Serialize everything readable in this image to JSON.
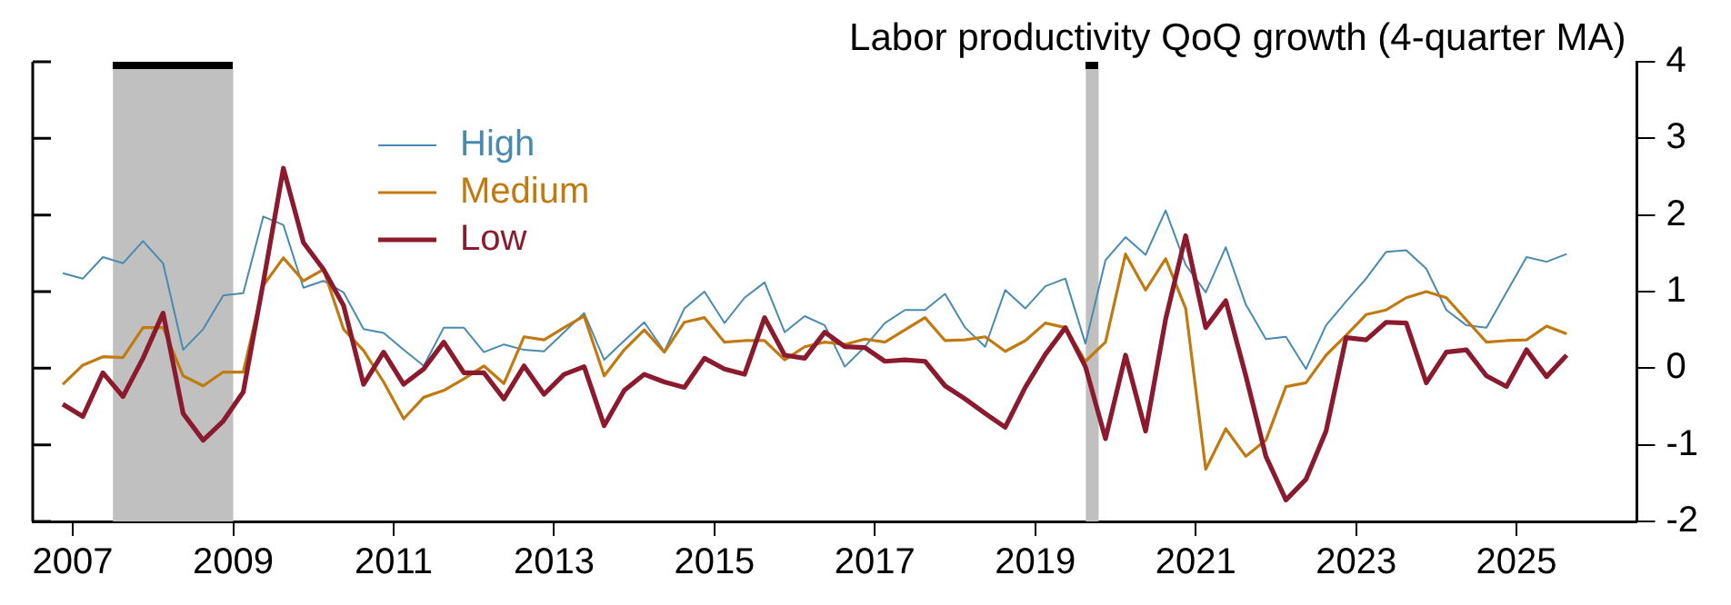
{
  "chart_data": {
    "type": "line",
    "title": "Labor productivity QoQ growth (4-quarter MA)",
    "x": [
      2007.375,
      2007.625,
      2007.875,
      2008.125,
      2008.375,
      2008.625,
      2008.875,
      2009.125,
      2009.375,
      2009.625,
      2009.875,
      2010.125,
      2010.375,
      2010.625,
      2010.875,
      2011.125,
      2011.375,
      2011.625,
      2011.875,
      2012.125,
      2012.375,
      2012.625,
      2012.875,
      2013.125,
      2013.375,
      2013.625,
      2013.875,
      2014.125,
      2014.375,
      2014.625,
      2014.875,
      2015.125,
      2015.375,
      2015.625,
      2015.875,
      2016.125,
      2016.375,
      2016.625,
      2016.875,
      2017.125,
      2017.375,
      2017.625,
      2017.875,
      2018.125,
      2018.375,
      2018.625,
      2018.875,
      2019.125,
      2019.375,
      2019.625,
      2019.875,
      2020.125,
      2020.375,
      2020.625,
      2020.875,
      2021.125,
      2021.375,
      2021.625,
      2021.875,
      2022.125,
      2022.375,
      2022.625,
      2022.875,
      2023.125,
      2023.375,
      2023.625,
      2023.875,
      2024.125,
      2024.375,
      2024.625,
      2024.875,
      2025.125,
      2025.375,
      2025.625,
      2025.875,
      2026.125
    ],
    "series": [
      {
        "name": "High",
        "color": "#4a8ab0",
        "values": [
          1.24,
          1.17,
          1.45,
          1.37,
          1.66,
          1.37,
          0.24,
          0.51,
          0.95,
          0.98,
          1.98,
          1.87,
          1.05,
          1.14,
          0.99,
          0.51,
          0.46,
          0.24,
          0.03,
          0.53,
          0.53,
          0.21,
          0.31,
          0.24,
          0.22,
          0.47,
          0.72,
          0.11,
          0.36,
          0.6,
          0.22,
          0.78,
          1.0,
          0.59,
          0.92,
          1.12,
          0.47,
          0.68,
          0.56,
          0.02,
          0.28,
          0.59,
          0.76,
          0.76,
          0.97,
          0.53,
          0.28,
          1.02,
          0.78,
          1.07,
          1.17,
          0.32,
          1.41,
          1.71,
          1.48,
          2.06,
          1.35,
          0.99,
          1.58,
          0.83,
          0.38,
          0.41,
          -0.01,
          0.56,
          0.87,
          1.17,
          1.52,
          1.54,
          1.3,
          0.76,
          0.56,
          0.53,
          0.99,
          1.45,
          1.39,
          1.49
        ]
      },
      {
        "name": "Medium",
        "color": "#c07a10",
        "values": [
          -0.21,
          0.04,
          0.15,
          0.14,
          0.53,
          0.53,
          -0.1,
          -0.23,
          -0.05,
          -0.05,
          1.08,
          1.44,
          1.14,
          1.29,
          0.51,
          0.23,
          -0.18,
          -0.66,
          -0.38,
          -0.29,
          -0.14,
          0.03,
          -0.2,
          0.41,
          0.37,
          0.53,
          0.68,
          -0.1,
          0.24,
          0.5,
          0.21,
          0.6,
          0.66,
          0.34,
          0.36,
          0.36,
          0.11,
          0.28,
          0.34,
          0.31,
          0.38,
          0.34,
          0.5,
          0.66,
          0.36,
          0.37,
          0.41,
          0.22,
          0.36,
          0.59,
          0.53,
          0.09,
          0.34,
          1.49,
          1.02,
          1.43,
          0.78,
          -1.32,
          -0.79,
          -1.15,
          -0.94,
          -0.24,
          -0.19,
          0.17,
          0.43,
          0.7,
          0.76,
          0.92,
          1.0,
          0.92,
          0.63,
          0.34,
          0.36,
          0.37,
          0.55,
          0.45
        ]
      },
      {
        "name": "Low",
        "color": "#8b1a2e",
        "values": [
          -0.47,
          -0.63,
          -0.06,
          -0.37,
          0.13,
          0.72,
          -0.59,
          -0.94,
          -0.69,
          -0.31,
          1.12,
          2.61,
          1.64,
          1.29,
          0.82,
          -0.21,
          0.21,
          -0.21,
          -0.01,
          0.34,
          -0.06,
          -0.06,
          -0.4,
          0.03,
          -0.34,
          -0.08,
          0.02,
          -0.75,
          -0.29,
          -0.08,
          -0.18,
          -0.25,
          0.13,
          -0.01,
          -0.08,
          0.66,
          0.17,
          0.13,
          0.47,
          0.28,
          0.27,
          0.09,
          0.11,
          0.09,
          -0.23,
          -0.4,
          -0.59,
          -0.77,
          -0.25,
          0.18,
          0.53,
          0.02,
          -0.92,
          0.17,
          -0.82,
          0.64,
          1.73,
          0.53,
          0.88,
          -0.1,
          -1.15,
          -1.72,
          -1.45,
          -0.82,
          0.4,
          0.37,
          0.6,
          0.59,
          -0.19,
          0.21,
          0.24,
          -0.1,
          -0.24,
          0.24,
          -0.11,
          0.17
        ]
      }
    ],
    "xlim": [
      2007,
      2027
    ],
    "xticks": [
      {
        "value": 2007.5,
        "label": "2007"
      },
      {
        "value": 2009.5,
        "label": "2009"
      },
      {
        "value": 2011.5,
        "label": "2011"
      },
      {
        "value": 2013.5,
        "label": "2013"
      },
      {
        "value": 2015.5,
        "label": "2015"
      },
      {
        "value": 2017.5,
        "label": "2017"
      },
      {
        "value": 2019.5,
        "label": "2019"
      },
      {
        "value": 2021.5,
        "label": "2021"
      },
      {
        "value": 2023.5,
        "label": "2023"
      },
      {
        "value": 2025.5,
        "label": "2025"
      }
    ],
    "ylim": [
      -2,
      4
    ],
    "yticks": [
      -2,
      -1,
      0,
      1,
      2,
      3,
      4
    ],
    "bands": [
      {
        "axis": "x",
        "from": 2008.0,
        "to": 2009.5,
        "color": "#c0c0c0"
      },
      {
        "axis": "x",
        "from": 2020.13,
        "to": 2020.29,
        "color": "#c0c0c0"
      }
    ],
    "grid": false,
    "legend": "top left",
    "marker": "none",
    "line_style": "solid"
  }
}
